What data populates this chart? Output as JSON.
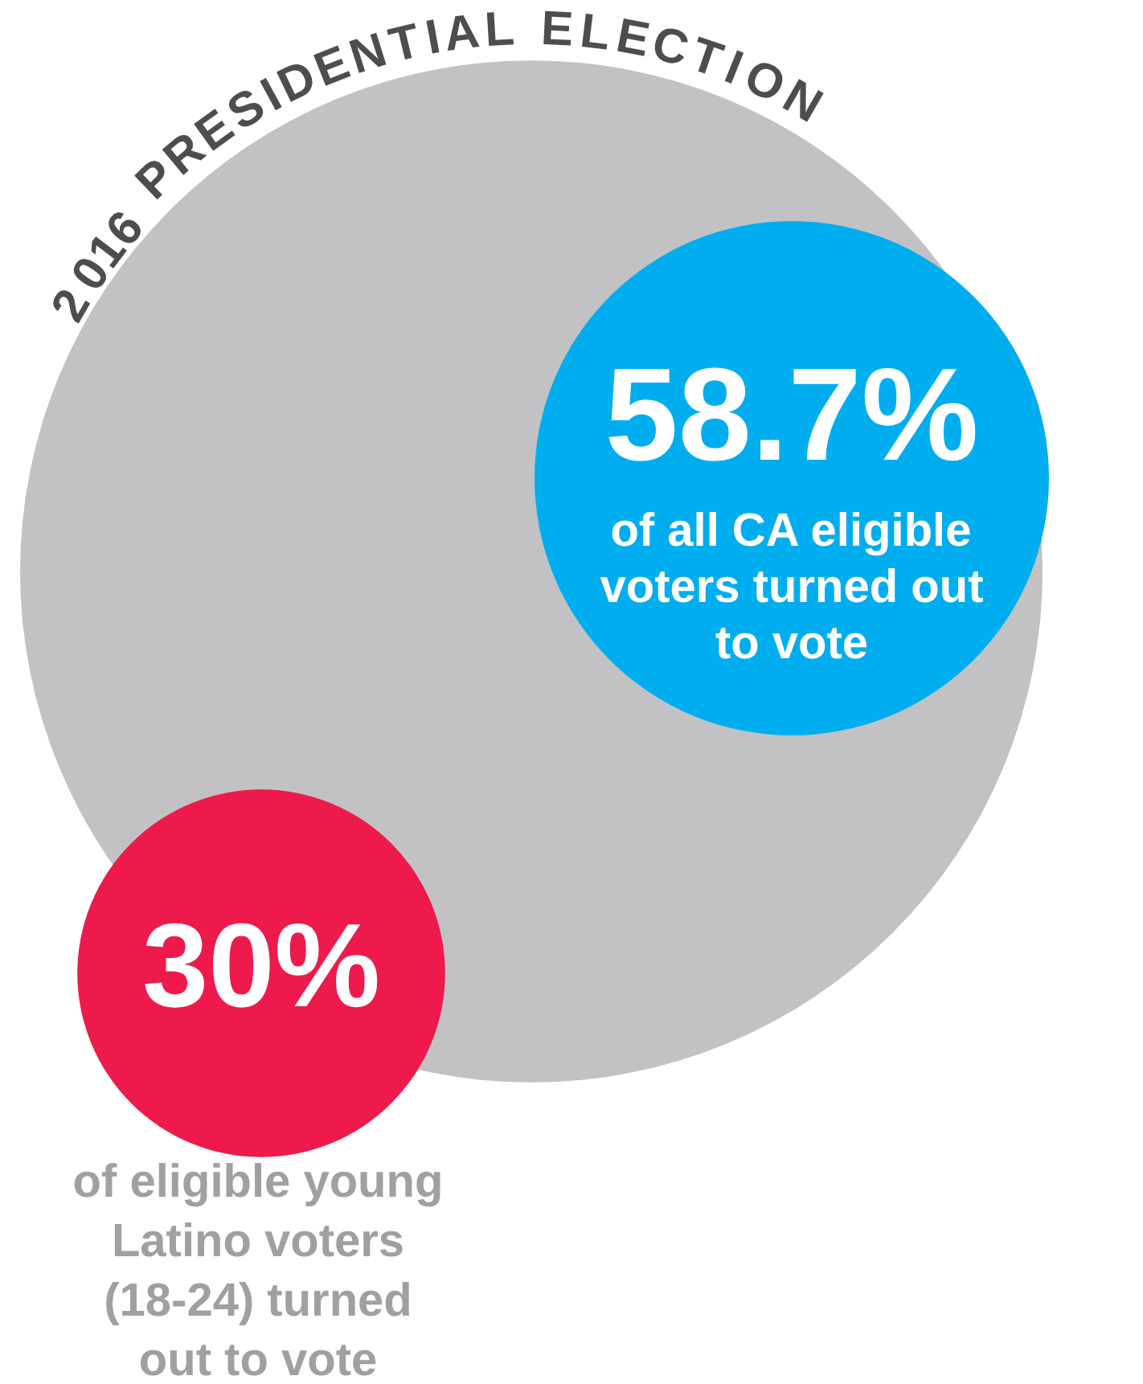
{
  "chart_data": {
    "type": "other",
    "title": "2016 PRESIDENTIAL ELECTION",
    "categories": [
      "of all CA eligible voters turned out to vote",
      "of eligible young Latino voters (18-24) turned out to vote"
    ],
    "values": [
      58.7,
      30
    ],
    "value_labels": [
      "58.7%",
      "30%"
    ],
    "colors": [
      "#00aeef",
      "#ed1a4b"
    ]
  }
}
